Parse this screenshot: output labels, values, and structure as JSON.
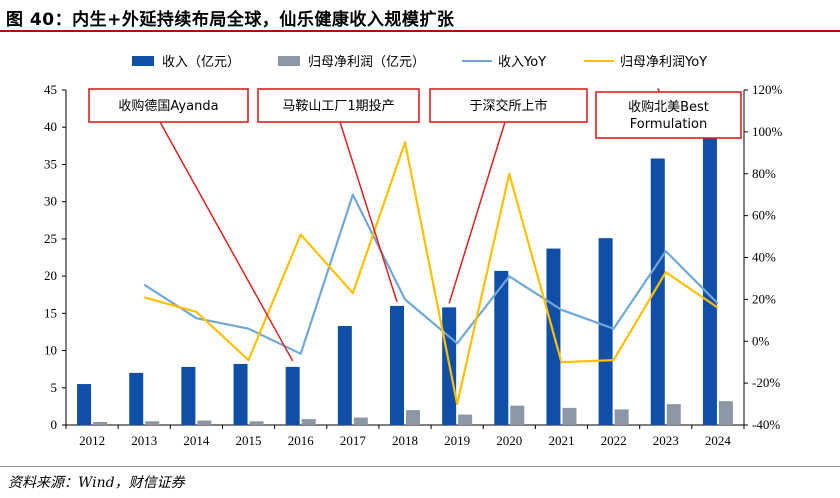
{
  "header": {
    "title": "图 40：内生+外延持续布局全球，仙乐健康收入规模扩张"
  },
  "footer": {
    "source": "资料来源：Wind，财信证券"
  },
  "colors": {
    "revenue_bar": "#0f4fa8",
    "profit_bar": "#8c97a6",
    "revenue_yoy": "#6fa8d6",
    "profit_yoy": "#ffc000",
    "annotation": "#e02020"
  },
  "chart_data": {
    "type": "bar",
    "categories": [
      "2012",
      "2013",
      "2014",
      "2015",
      "2016",
      "2017",
      "2018",
      "2019",
      "2020",
      "2021",
      "2022",
      "2023",
      "2024"
    ],
    "series": [
      {
        "name": "收入（亿元）",
        "type": "bar",
        "axis": "left",
        "values": [
          5.5,
          7.0,
          7.8,
          8.2,
          7.8,
          13.3,
          16.0,
          15.8,
          20.7,
          23.7,
          25.1,
          35.8,
          42.1
        ]
      },
      {
        "name": "归母净利润（亿元）",
        "type": "bar",
        "axis": "left",
        "values": [
          0.4,
          0.5,
          0.6,
          0.5,
          0.8,
          1.0,
          2.0,
          1.4,
          2.6,
          2.3,
          2.1,
          2.8,
          3.2
        ]
      },
      {
        "name": "收入YoY",
        "type": "line",
        "axis": "right",
        "values": [
          null,
          27,
          11,
          6,
          -6,
          70,
          20,
          -1,
          31,
          15,
          6,
          43,
          18
        ]
      },
      {
        "name": "归母净利润YoY",
        "type": "line",
        "axis": "right",
        "values": [
          null,
          21,
          14,
          -9,
          51,
          23,
          95,
          -30,
          80,
          -10,
          -9,
          33,
          16
        ]
      }
    ],
    "ylim_left": [
      0,
      45
    ],
    "yticks_left": [
      0,
      5,
      10,
      15,
      20,
      25,
      30,
      35,
      40,
      45
    ],
    "ylim_right": [
      -40,
      120
    ],
    "yticks_right": [
      "-40%",
      "-20%",
      "0%",
      "20%",
      "40%",
      "60%",
      "80%",
      "100%",
      "120%"
    ],
    "legend": "top",
    "annotations": [
      {
        "lines": [
          "收购德国Ayanda"
        ],
        "target_category": "2016"
      },
      {
        "lines": [
          "马鞍山工厂1期投产"
        ],
        "target_category": "2018"
      },
      {
        "lines": [
          "于深交所上市"
        ],
        "target_category": "2019"
      },
      {
        "lines": [
          "收购北美Best",
          "Formulation"
        ],
        "target_category": "2023"
      }
    ]
  }
}
